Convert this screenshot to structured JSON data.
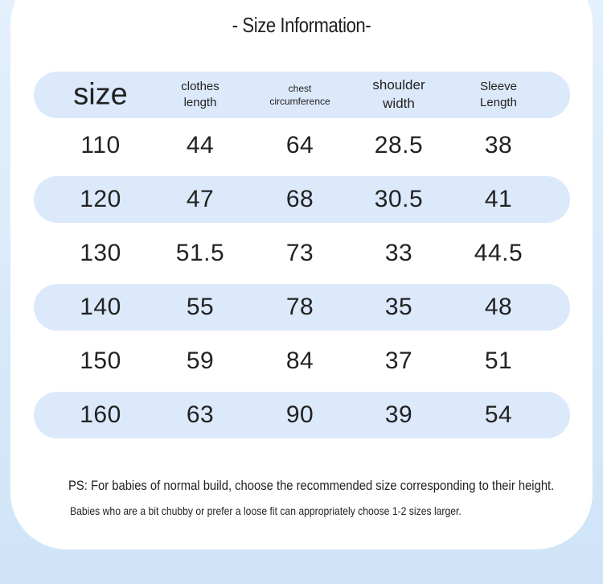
{
  "header": {
    "title": "- Size Information-"
  },
  "table": {
    "columns": [
      [
        "size"
      ],
      [
        "clothes",
        "length"
      ],
      [
        "chest",
        "circumference"
      ],
      [
        "shoulder",
        "width"
      ],
      [
        "Sleeve",
        "Length"
      ]
    ],
    "rows": [
      [
        110,
        44,
        64,
        28.5,
        38
      ],
      [
        120,
        47,
        68,
        30.5,
        41
      ],
      [
        130,
        51.5,
        73,
        33,
        44.5
      ],
      [
        140,
        55,
        78,
        35,
        48
      ],
      [
        150,
        59,
        84,
        37,
        51
      ],
      [
        160,
        63,
        90,
        39,
        54
      ]
    ]
  },
  "notes": [
    "PS: For babies of normal build, choose the recommended size corresponding to their height.",
    "Babies who are a bit chubby or prefer a loose fit can appropriately choose 1-2 sizes larger."
  ]
}
